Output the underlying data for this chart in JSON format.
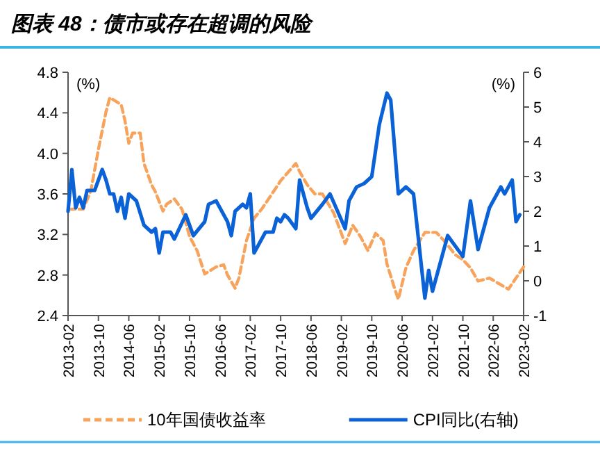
{
  "chart_data": {
    "type": "line",
    "title": "图表 48：债市或存在超调的风险",
    "ylabel": "(%)",
    "y2label": "(%)",
    "xlim": [
      "2013-02",
      "2023-02"
    ],
    "xticks": [
      "2013-02",
      "2013-10",
      "2014-06",
      "2015-02",
      "2015-10",
      "2016-06",
      "2017-02",
      "2017-10",
      "2018-06",
      "2019-02",
      "2019-10",
      "2020-06",
      "2021-02",
      "2021-10",
      "2022-06",
      "2023-02"
    ],
    "ylim": [
      2.4,
      4.8
    ],
    "yticks": [
      2.4,
      2.8,
      3.2,
      3.6,
      {
        "value": 4,
        "label": "4.0"
      },
      4.4,
      4.8
    ],
    "y2lim": [
      -1,
      6
    ],
    "y2ticks": [
      -1,
      0,
      1,
      2,
      3,
      4,
      5,
      6
    ],
    "legend": "bottom",
    "grid": false,
    "series": [
      {
        "name": "10年国债收益率",
        "color": "#f7a35c",
        "line_style": "dashed",
        "x": [
          "2013-02",
          "2013-06",
          "2013-08",
          "2013-10",
          "2013-12",
          "2014-01",
          "2014-04",
          "2014-05",
          "2014-06",
          "2014-07",
          "2014-09",
          "2014-10",
          "2014-12",
          "2015-01",
          "2015-03",
          "2015-04",
          "2015-06",
          "2015-08",
          "2015-10",
          "2015-12",
          "2016-02",
          "2016-05",
          "2016-07",
          "2016-08",
          "2016-10",
          "2016-11",
          "2017-01",
          "2017-03",
          "2017-05",
          "2017-07",
          "2017-10",
          "2018-02",
          "2018-03",
          "2018-05",
          "2018-07",
          "2018-09",
          "2018-12",
          "2019-03",
          "2019-05",
          "2019-07",
          "2019-09",
          "2019-11",
          "2020-01",
          "2020-02",
          "2020-04",
          "2020-05",
          "2020-07",
          "2020-09",
          "2020-12",
          "2021-03",
          "2021-05",
          "2021-08",
          "2021-10",
          "2021-12",
          "2022-02",
          "2022-05",
          "2022-10",
          "2022-12",
          "2023-02"
        ],
        "values": [
          3.45,
          3.45,
          3.63,
          4.04,
          4.41,
          4.55,
          4.48,
          4.32,
          4.1,
          4.2,
          4.2,
          3.9,
          3.69,
          3.62,
          3.43,
          3.5,
          3.55,
          3.45,
          3.18,
          3.04,
          2.81,
          2.88,
          2.9,
          2.8,
          2.67,
          2.77,
          3.14,
          3.36,
          3.45,
          3.56,
          3.73,
          3.9,
          3.82,
          3.69,
          3.6,
          3.6,
          3.41,
          3.11,
          3.29,
          3.18,
          3.04,
          3.21,
          3.14,
          2.91,
          2.67,
          2.56,
          2.87,
          3.04,
          3.22,
          3.22,
          3.14,
          3.0,
          2.95,
          2.87,
          2.74,
          2.77,
          2.66,
          2.77,
          2.88
        ]
      },
      {
        "name": "CPI同比(右轴)",
        "color": "#0b62d6",
        "axis": "y2",
        "line_style": "solid",
        "x": [
          "2013-02",
          "2013-03",
          "2013-04",
          "2013-05",
          "2013-06",
          "2013-07",
          "2013-09",
          "2013-11",
          "2013-12",
          "2014-01",
          "2014-02",
          "2014-03",
          "2014-04",
          "2014-05",
          "2014-06",
          "2014-08",
          "2014-10",
          "2014-12",
          "2015-01",
          "2015-02",
          "2015-03",
          "2015-05",
          "2015-06",
          "2015-09",
          "2015-11",
          "2016-02",
          "2016-03",
          "2016-05",
          "2016-07",
          "2016-08",
          "2016-09",
          "2016-10",
          "2016-12",
          "2017-01",
          "2017-02",
          "2017-03",
          "2017-04",
          "2017-06",
          "2017-08",
          "2017-09",
          "2017-10",
          "2017-11",
          "2017-12",
          "2018-02",
          "2018-03",
          "2018-05",
          "2018-06",
          "2018-09",
          "2018-11",
          "2019-03",
          "2019-04",
          "2019-06",
          "2019-08",
          "2019-10",
          "2019-12",
          "2020-02",
          "2020-03",
          "2020-05",
          "2020-07",
          "2020-09",
          "2020-12",
          "2021-01",
          "2021-02",
          "2021-06",
          "2021-10",
          "2021-12",
          "2022-02",
          "2022-05",
          "2022-08",
          "2022-09",
          "2022-11",
          "2022-12",
          "2023-01"
        ],
        "values": [
          2.0,
          3.2,
          2.1,
          2.4,
          2.1,
          2.6,
          2.6,
          3.2,
          2.9,
          2.5,
          2.5,
          2.0,
          2.4,
          1.8,
          2.5,
          2.3,
          1.6,
          1.4,
          1.5,
          0.8,
          1.4,
          1.4,
          1.2,
          1.9,
          1.3,
          1.7,
          2.2,
          2.3,
          1.9,
          1.7,
          1.3,
          2.0,
          2.2,
          2.1,
          2.5,
          0.8,
          1.0,
          1.4,
          1.4,
          1.8,
          1.7,
          1.9,
          1.8,
          1.5,
          2.9,
          2.1,
          1.8,
          2.2,
          2.5,
          1.5,
          2.3,
          2.7,
          2.8,
          3.0,
          4.5,
          5.4,
          5.2,
          2.5,
          2.7,
          2.5,
          -0.5,
          0.3,
          -0.3,
          1.3,
          0.7,
          2.3,
          0.9,
          2.1,
          2.7,
          2.5,
          2.9,
          1.7,
          1.9
        ]
      }
    ]
  }
}
